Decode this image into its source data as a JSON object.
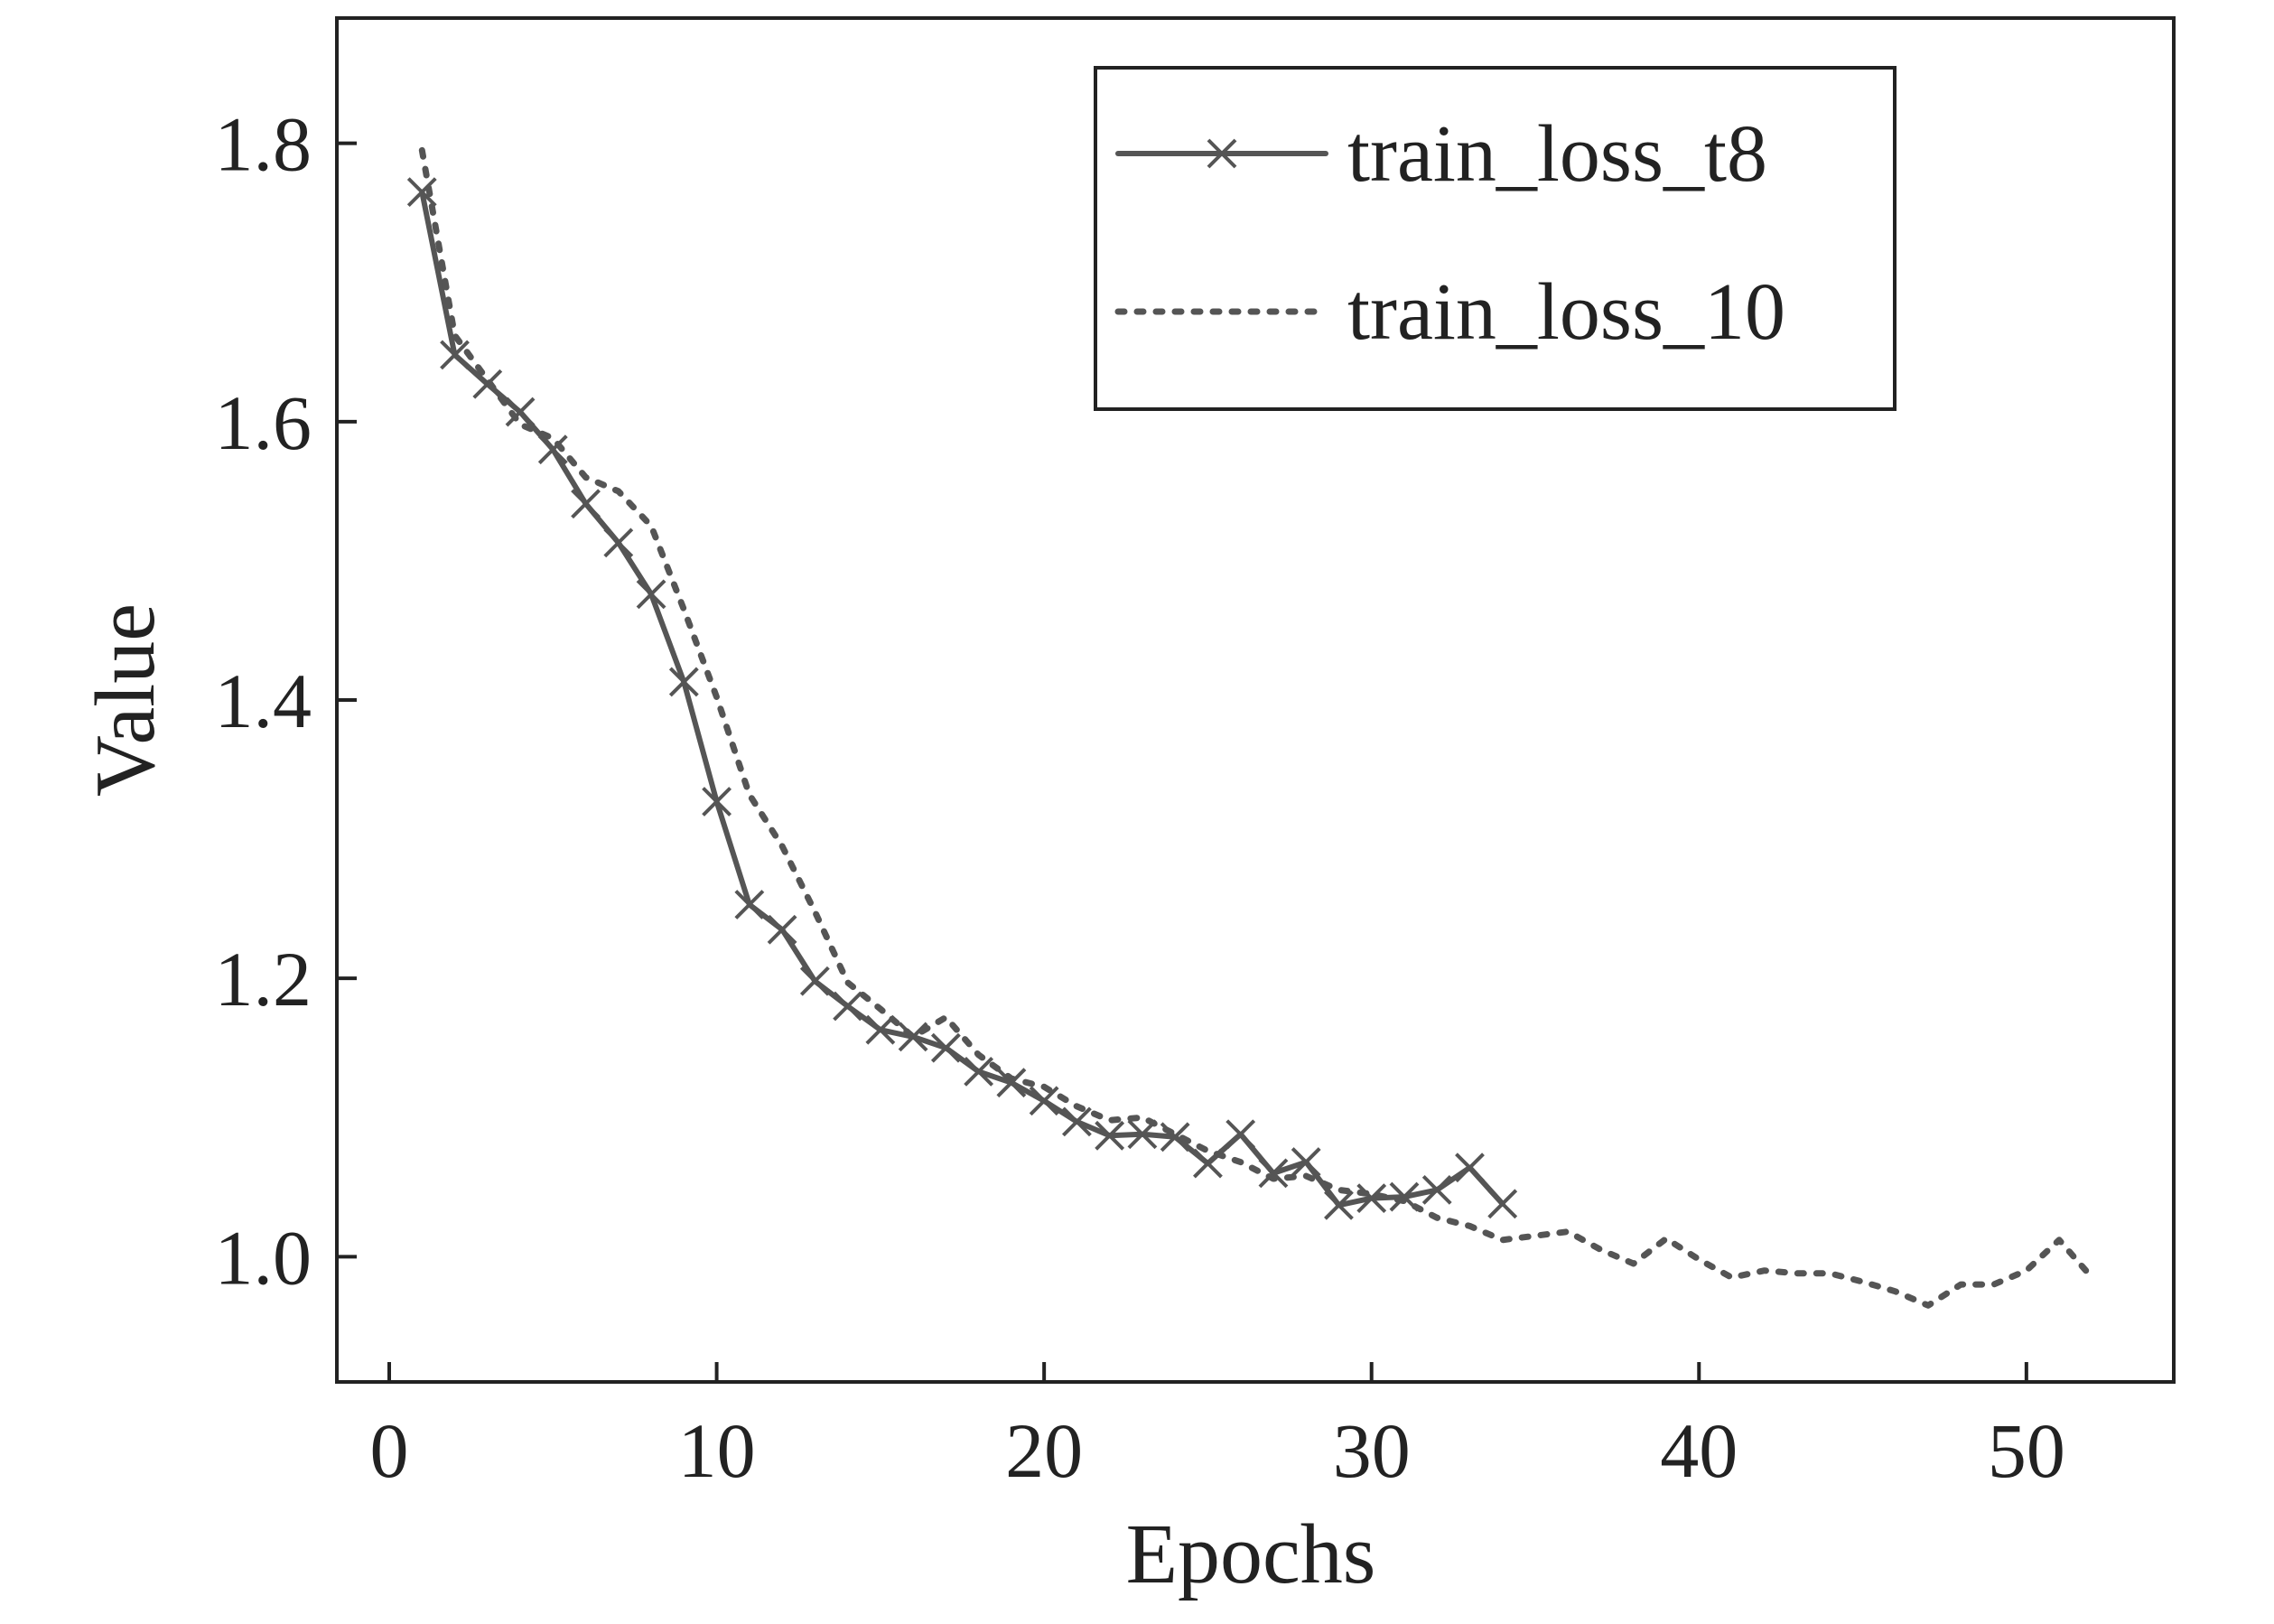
{
  "colors": {
    "series_line": "#555555",
    "axes": "#222222",
    "background": "#ffffff"
  },
  "chart_data": {
    "type": "line",
    "xlabel": "Epochs",
    "ylabel": "Value",
    "xlim": [
      -1.6,
      54.5
    ],
    "ylim": [
      0.91,
      1.89
    ],
    "xticks": [
      0,
      10,
      20,
      30,
      40,
      50
    ],
    "yticks": [
      1.0,
      1.2,
      1.4,
      1.6,
      1.8
    ],
    "xtick_labels": [
      "0",
      "10",
      "20",
      "30",
      "40",
      "50"
    ],
    "ytick_labels": [
      "1.0",
      "1.2",
      "1.4",
      "1.6",
      "1.8"
    ],
    "grid": false,
    "legend_position": "top-right",
    "series": [
      {
        "name": "train_loss_t8",
        "style": "solid",
        "marker": "x",
        "x": [
          1,
          2,
          3,
          4,
          5,
          6,
          7,
          8,
          9,
          10,
          11,
          12,
          13,
          14,
          15,
          16,
          17,
          18,
          19,
          20,
          21,
          22,
          23,
          24,
          25,
          26,
          27,
          28,
          29,
          30,
          31,
          32,
          33,
          34
        ],
        "y": [
          1.765,
          1.648,
          1.627,
          1.607,
          1.58,
          1.541,
          1.513,
          1.476,
          1.413,
          1.327,
          1.253,
          1.235,
          1.198,
          1.18,
          1.163,
          1.158,
          1.15,
          1.133,
          1.125,
          1.112,
          1.097,
          1.087,
          1.088,
          1.086,
          1.067,
          1.088,
          1.06,
          1.068,
          1.037,
          1.042,
          1.043,
          1.048,
          1.064,
          1.038
        ]
      },
      {
        "name": "train_loss_10",
        "style": "dotted",
        "marker": "none",
        "x": [
          1,
          2,
          3,
          4,
          5,
          6,
          7,
          8,
          9,
          10,
          11,
          12,
          13,
          14,
          15,
          16,
          17,
          18,
          19,
          20,
          21,
          22,
          23,
          24,
          25,
          26,
          27,
          28,
          29,
          30,
          31,
          32,
          33,
          34,
          35,
          36,
          37,
          38,
          39,
          40,
          41,
          42,
          43,
          44,
          45,
          46,
          47,
          48,
          49,
          50,
          51,
          52
        ],
        "y": [
          1.795,
          1.662,
          1.63,
          1.598,
          1.588,
          1.56,
          1.55,
          1.525,
          1.465,
          1.402,
          1.332,
          1.295,
          1.248,
          1.197,
          1.178,
          1.158,
          1.172,
          1.145,
          1.128,
          1.122,
          1.108,
          1.098,
          1.1,
          1.088,
          1.076,
          1.068,
          1.056,
          1.058,
          1.048,
          1.045,
          1.04,
          1.028,
          1.022,
          1.012,
          1.015,
          1.018,
          1.005,
          0.995,
          1.013,
          0.998,
          0.985,
          0.99,
          0.988,
          0.988,
          0.982,
          0.975,
          0.965,
          0.98,
          0.98,
          0.99,
          1.012,
          0.985
        ]
      }
    ]
  }
}
